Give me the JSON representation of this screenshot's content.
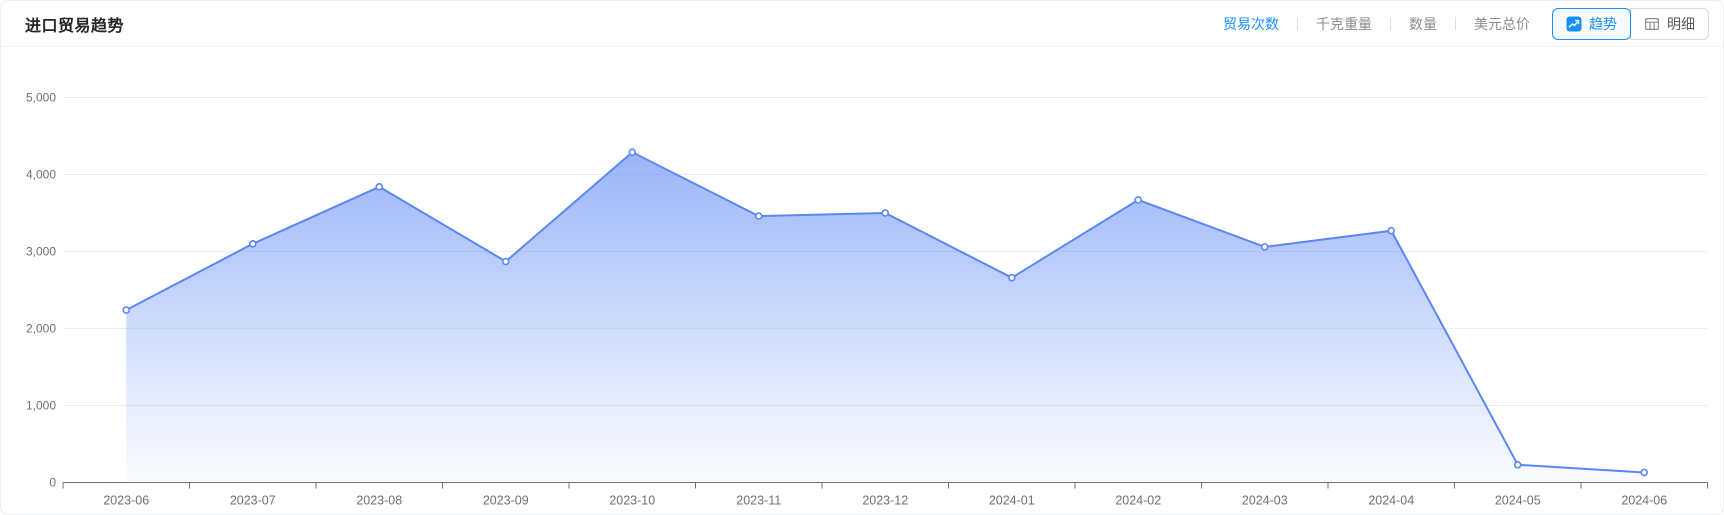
{
  "header": {
    "title": "进口贸易趋势",
    "metrics": [
      {
        "key": "trade-count",
        "label": "贸易次数",
        "active": true
      },
      {
        "key": "kg-weight",
        "label": "千克重量",
        "active": false
      },
      {
        "key": "quantity",
        "label": "数量",
        "active": false
      },
      {
        "key": "usd-total",
        "label": "美元总价",
        "active": false
      }
    ],
    "view_buttons": [
      {
        "key": "trend",
        "label": "趋势",
        "icon": "trend-icon",
        "active": true
      },
      {
        "key": "detail",
        "label": "明细",
        "icon": "table-icon",
        "active": false
      }
    ]
  },
  "colors": {
    "accent": "#1890ff",
    "line": "#5b87f5",
    "grid": "#e9edf4",
    "axis": "#6e7079",
    "axis_label": "#6e7079",
    "title_text": "#262626"
  },
  "chart_data": {
    "type": "area",
    "title": "进口贸易趋势",
    "x": [
      "2023-06",
      "2023-07",
      "2023-08",
      "2023-09",
      "2023-10",
      "2023-11",
      "2023-12",
      "2024-01",
      "2024-02",
      "2024-03",
      "2024-04",
      "2024-05",
      "2024-06"
    ],
    "series": [
      {
        "name": "贸易次数",
        "values": [
          2240,
          3100,
          3840,
          2870,
          4290,
          3460,
          3500,
          2660,
          3670,
          3060,
          3270,
          230,
          130
        ]
      }
    ],
    "xlabel": "",
    "ylabel": "",
    "ylim": [
      0,
      5000
    ],
    "yticks": [
      0,
      1000,
      2000,
      3000,
      4000,
      5000
    ],
    "grid": true,
    "legend_position": "none",
    "marker": "hollow-circle",
    "area_gradient": true
  }
}
